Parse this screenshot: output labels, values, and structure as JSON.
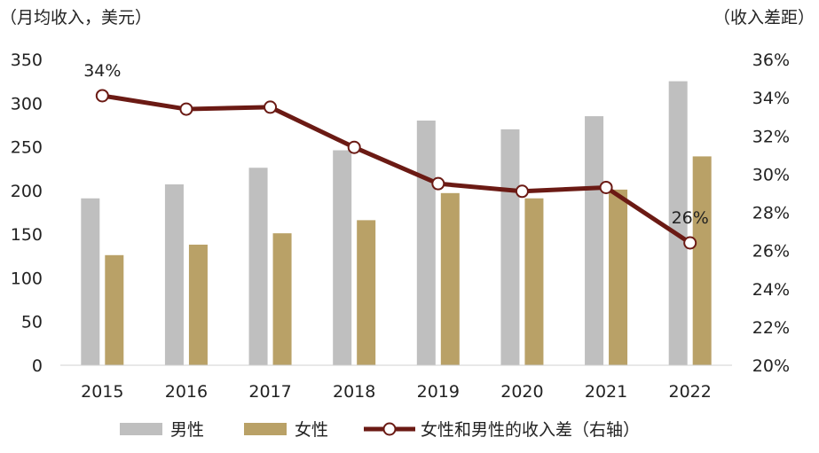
{
  "chart_data": {
    "type": "bar",
    "title": "",
    "y_left_unit": "（月均收入，美元）",
    "y_right_unit": "（收入差距）",
    "categories": [
      "2015",
      "2016",
      "2017",
      "2018",
      "2019",
      "2020",
      "2021",
      "2022"
    ],
    "series": [
      {
        "name": "男性",
        "type": "bar",
        "axis": "left",
        "color": "#bfbfbf",
        "values": [
          191,
          207,
          226,
          246,
          280,
          270,
          285,
          325
        ]
      },
      {
        "name": "女性",
        "type": "bar",
        "axis": "left",
        "color": "#b9a167",
        "values": [
          126,
          138,
          151,
          166,
          197,
          191,
          201,
          239
        ]
      },
      {
        "name": "女性和男性的收入差（右轴）",
        "type": "line",
        "axis": "right",
        "color": "#6b1a14",
        "values": [
          34.1,
          33.4,
          33.5,
          31.4,
          29.5,
          29.1,
          29.3,
          26.4
        ]
      }
    ],
    "y_left": {
      "min": 0,
      "max": 350,
      "ticks": [
        0,
        50,
        100,
        150,
        200,
        250,
        300,
        350
      ]
    },
    "y_right": {
      "min": 20,
      "max": 36,
      "ticks": [
        "20%",
        "22%",
        "24%",
        "26%",
        "28%",
        "30%",
        "32%",
        "34%",
        "36%"
      ]
    },
    "annotations": [
      {
        "series": 2,
        "index": 0,
        "text": "34%"
      },
      {
        "series": 2,
        "index": 7,
        "text": "26%"
      }
    ],
    "legend_position": "bottom",
    "grid": false
  }
}
